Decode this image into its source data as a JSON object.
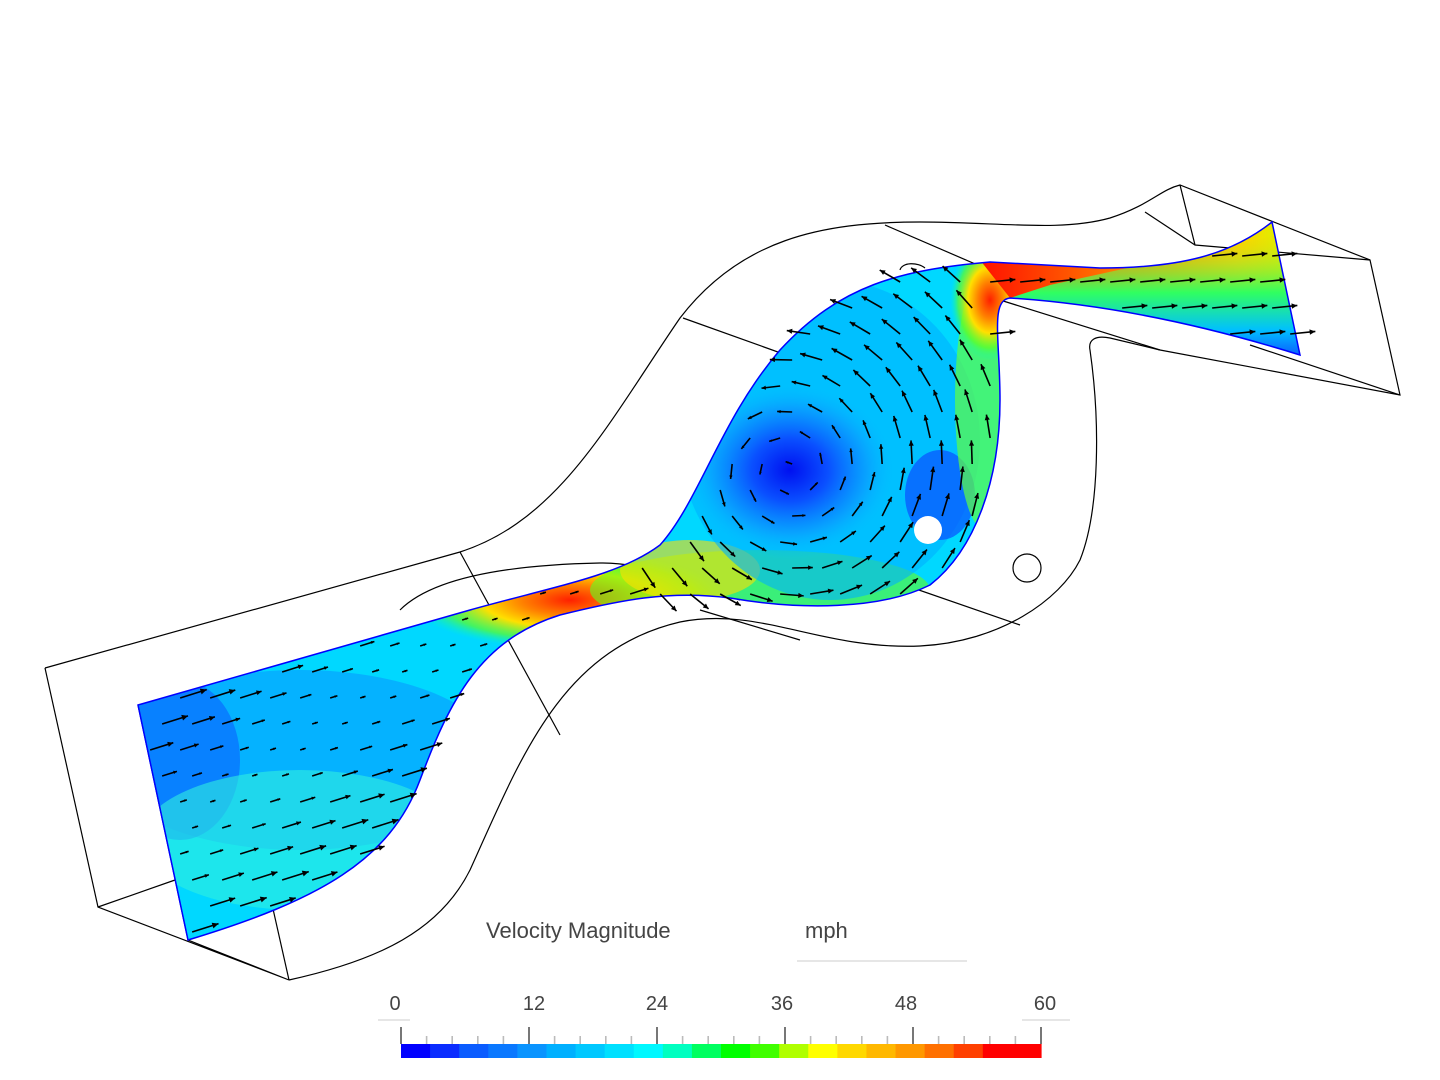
{
  "legend": {
    "title": "Velocity Magnitude",
    "unit": "mph",
    "range": [
      0,
      60
    ],
    "tick_labels": [
      "0",
      "12",
      "24",
      "36",
      "48",
      "60"
    ],
    "colormap": [
      "#0000ff",
      "#0a2cff",
      "#0a5cff",
      "#0a78ff",
      "#0a94ff",
      "#00b0ff",
      "#00c8ff",
      "#00e0ff",
      "#00f8ff",
      "#00ffc0",
      "#00ff60",
      "#00ff00",
      "#40ff00",
      "#b0ff00",
      "#ffff00",
      "#ffd800",
      "#ffb800",
      "#ff9800",
      "#ff7000",
      "#ff4000",
      "#ff0000",
      "#ff0000"
    ]
  }
}
